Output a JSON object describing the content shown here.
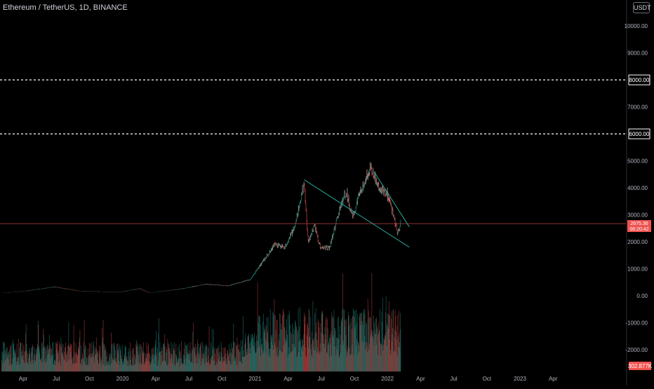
{
  "header": {
    "symbol": "Ethereum / TetherUS, 1D, BINANCE",
    "currency": "USDT"
  },
  "colors": {
    "background": "#000000",
    "up": "#26a69a",
    "down": "#ef5350",
    "trendline": "#26a69a",
    "price_line": "#ef5350",
    "level_line": "#ffffff",
    "axis_text": "#b2b5be"
  },
  "chart_data": {
    "type": "candlestick",
    "title": "Ethereum / TetherUS, 1D, BINANCE",
    "ylim": [
      -2500,
      10500
    ],
    "y_ticks": [
      -2000,
      -1000,
      0,
      1000,
      2000,
      3000,
      4000,
      5000,
      7000,
      9000,
      10000
    ],
    "y_tick_labels": [
      "-2000.00",
      "-1000.00",
      "0.00",
      "1000.00",
      "2000.00",
      "3000.00",
      "4000.00",
      "5000.00",
      "7000.00",
      "9000.00",
      "10000.00"
    ],
    "x_labels": [
      "Apr",
      "Jul",
      "Oct",
      "2020",
      "Apr",
      "Jul",
      "Oct",
      "2021",
      "Apr",
      "Jul",
      "Oct",
      "2022",
      "Apr",
      "Jul",
      "Oct",
      "2023",
      "Apr"
    ],
    "price_path": [
      {
        "date": "2019-02-01",
        "close": 110
      },
      {
        "date": "2019-04-01",
        "close": 160
      },
      {
        "date": "2019-06-25",
        "close": 330
      },
      {
        "date": "2019-09-01",
        "close": 180
      },
      {
        "date": "2019-12-20",
        "close": 130
      },
      {
        "date": "2020-02-15",
        "close": 270
      },
      {
        "date": "2020-03-13",
        "close": 110
      },
      {
        "date": "2020-06-01",
        "close": 240
      },
      {
        "date": "2020-08-15",
        "close": 430
      },
      {
        "date": "2020-10-15",
        "close": 370
      },
      {
        "date": "2020-12-15",
        "close": 600
      },
      {
        "date": "2021-01-20",
        "close": 1300
      },
      {
        "date": "2021-02-20",
        "close": 1900
      },
      {
        "date": "2021-03-20",
        "close": 1800
      },
      {
        "date": "2021-04-15",
        "close": 2500
      },
      {
        "date": "2021-05-12",
        "close": 4200
      },
      {
        "date": "2021-05-23",
        "close": 2000
      },
      {
        "date": "2021-06-10",
        "close": 2600
      },
      {
        "date": "2021-06-25",
        "close": 1800
      },
      {
        "date": "2021-07-20",
        "close": 1750
      },
      {
        "date": "2021-08-20",
        "close": 3300
      },
      {
        "date": "2021-09-05",
        "close": 3900
      },
      {
        "date": "2021-09-22",
        "close": 2900
      },
      {
        "date": "2021-10-15",
        "close": 3900
      },
      {
        "date": "2021-11-10",
        "close": 4800
      },
      {
        "date": "2021-12-04",
        "close": 4000
      },
      {
        "date": "2021-12-25",
        "close": 3800
      },
      {
        "date": "2022-01-10",
        "close": 3100
      },
      {
        "date": "2022-01-24",
        "close": 2300
      },
      {
        "date": "2022-02-01",
        "close": 2700
      }
    ],
    "horizontal_levels": [
      {
        "price": 8000,
        "label": "8000.00"
      },
      {
        "price": 6000,
        "label": "6000.00"
      }
    ],
    "current_price": {
      "label": "2675.36",
      "countdown": "06:20:42"
    },
    "volume_label": "302.877K",
    "trendlines": [
      {
        "from": {
          "date": "2021-05-12",
          "price": 4300
        },
        "to": {
          "date": "2022-02-25",
          "price": 1800
        }
      },
      {
        "from": {
          "date": "2021-11-20",
          "price": 4600
        },
        "to": {
          "date": "2022-02-25",
          "price": 2550
        }
      }
    ]
  }
}
